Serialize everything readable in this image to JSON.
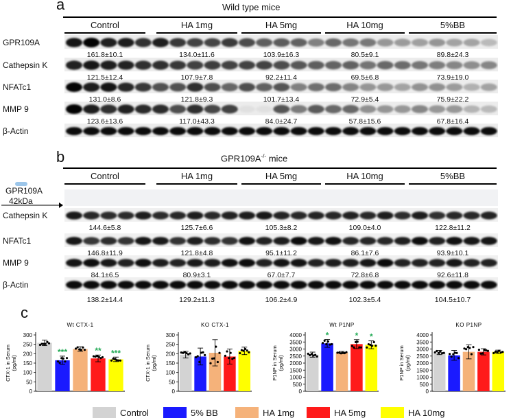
{
  "panel_a": {
    "letter": "a",
    "title": "Wild type mice",
    "groups": [
      "Control",
      "HA 1mg",
      "HA 5mg",
      "HA 10mg",
      "5%BB"
    ],
    "rows": [
      {
        "label": "GPR109A",
        "values": [
          "161.8±10.1",
          "134.0±11.6",
          "103.9±16.3",
          "80.5±9.1",
          "89.8±24.3"
        ]
      },
      {
        "label": "Cathepsin K",
        "values": [
          "121.5±12.4",
          "107.9±7.8",
          "92.2±11.4",
          "69.5±6.8",
          "73.9±19.0"
        ]
      },
      {
        "label": "NFATc1",
        "values": [
          "131.0±8.6",
          "121.8±9.3",
          "101.7±13.4",
          "72.9±5.4",
          "75.9±22.2"
        ]
      },
      {
        "label": "MMP 9",
        "values": [
          "123.6±13.6",
          "117.0±43.3",
          "84.0±24.7",
          "57.8±15.6",
          "67.8±16.4"
        ]
      },
      {
        "label": "β-Actin",
        "values": []
      }
    ]
  },
  "panel_b": {
    "letter": "b",
    "title_main": "GPR109A",
    "title_sup": "-/-",
    "title_tail": " mice",
    "groups": [
      "Control",
      "HA 1mg",
      "HA 5mg",
      "HA 10mg",
      "5%BB"
    ],
    "gpr_label": "GPR109A",
    "kda_label": "42kDa",
    "rows": [
      {
        "label": "Cathepsin K",
        "values": [
          "144.6±5.8",
          "125.7±6.6",
          "105.3±8.2",
          "109.0±4.0",
          "122.8±11.2"
        ]
      },
      {
        "label": "NFATc1",
        "values": [
          "146.8±11.9",
          "121.8±4.8",
          "95.1±11.2",
          "86.1±7.6",
          "93.9±10.1"
        ]
      },
      {
        "label": "MMP 9",
        "values": [
          "84.1±6.5",
          "80.9±3.1",
          "67.0±7.7",
          "72.8±6.8",
          "92.6±11.8"
        ]
      },
      {
        "label": "β-Actin",
        "values": [
          "138.2±14.4",
          "129.2±11.3",
          "106.2±4.9",
          "102.3±5.4",
          "104.5±10.7"
        ]
      }
    ]
  },
  "panel_c": {
    "letter": "c"
  },
  "colors": {
    "control": "#d3d3d3",
    "bb": "#1a1aff",
    "ha1": "#f5b27a",
    "ha5": "#ff1a1a",
    "ha10": "#ffff00",
    "star": "#22aa55"
  },
  "legend": [
    {
      "label": "Control",
      "color": "#d3d3d3"
    },
    {
      "label": "5% BB",
      "color": "#1a1aff"
    },
    {
      "label": "HA 1mg",
      "color": "#f5b27a"
    },
    {
      "label": "HA 5mg",
      "color": "#ff1a1a"
    },
    {
      "label": "HA 10mg",
      "color": "#ffff00"
    }
  ],
  "chart_data": [
    {
      "type": "bar",
      "title": "Wt CTX-1",
      "ylabel_top": "CTX-1 in Serum",
      "ylabel_bottom": "(pg/ml)",
      "yticks": [
        "0",
        "50",
        "100",
        "150",
        "200",
        "250",
        "300"
      ],
      "ylim": [
        0,
        300
      ],
      "categories": [
        "Control",
        "5% BB",
        "HA 1mg",
        "HA 5mg",
        "HA 10mg"
      ],
      "values": [
        258,
        165,
        225,
        175,
        170
      ],
      "errors": [
        15,
        22,
        12,
        18,
        12
      ],
      "stars": [
        "",
        "***",
        "",
        "**",
        "***"
      ]
    },
    {
      "type": "bar",
      "title": "KO CTX-1",
      "ylabel_top": "CTX-1 in Serum",
      "ylabel_bottom": "(pg/ml)",
      "yticks": [
        "0",
        "50",
        "100",
        "150",
        "200",
        "250",
        "300"
      ],
      "ylim": [
        0,
        300
      ],
      "categories": [
        "Control",
        "5% BB",
        "HA 1mg",
        "HA 5mg",
        "HA 10mg"
      ],
      "values": [
        195,
        185,
        205,
        185,
        215
      ],
      "errors": [
        18,
        45,
        70,
        40,
        20
      ],
      "stars": [
        "",
        "",
        "",
        "",
        ""
      ]
    },
    {
      "type": "bar",
      "title": "Wt P1NP",
      "ylabel_top": "P1NP in Serum",
      "ylabel_bottom": "(pg/ml)",
      "yticks": [
        "0",
        "500",
        "1000",
        "1500",
        "2000",
        "2500",
        "3000",
        "3500",
        "4000"
      ],
      "ylim": [
        0,
        4000
      ],
      "categories": [
        "Control",
        "5% BB",
        "HA 1mg",
        "HA 5mg",
        "HA 10mg"
      ],
      "values": [
        2600,
        3400,
        2750,
        3350,
        3300
      ],
      "errors": [
        180,
        280,
        80,
        320,
        280
      ],
      "stars": [
        "",
        "*",
        "",
        "*",
        "*"
      ]
    },
    {
      "type": "bar",
      "title": "KO P1NP",
      "ylabel_top": "P1NP in Serum",
      "ylabel_bottom": "(pg/ml)",
      "yticks": [
        "0",
        "500",
        "1000",
        "1500",
        "2000",
        "2500",
        "3000",
        "3500",
        "4000"
      ],
      "ylim": [
        0,
        4000
      ],
      "categories": [
        "Control",
        "5% BB",
        "HA 1mg",
        "HA 5mg",
        "HA 10mg"
      ],
      "values": [
        2750,
        2550,
        2800,
        2800,
        2800
      ],
      "errors": [
        150,
        350,
        500,
        220,
        120
      ],
      "stars": [
        "",
        "",
        "",
        "",
        ""
      ]
    }
  ]
}
